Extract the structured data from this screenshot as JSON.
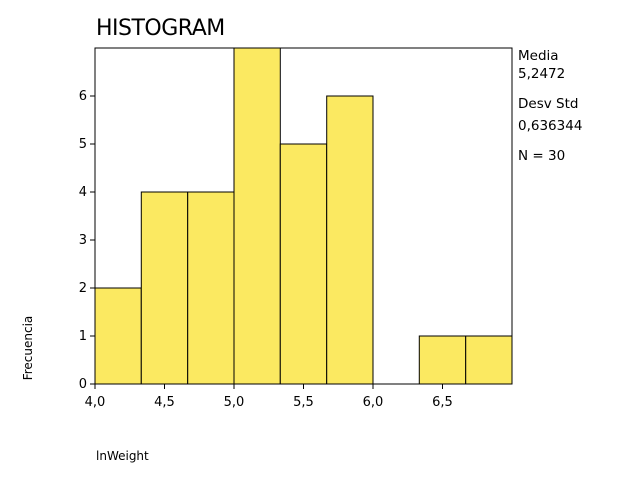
{
  "title": "HISTOGRAM",
  "stats": {
    "mean_label": "Media",
    "mean_value": "5,2472",
    "sd_label": "Desv Std",
    "sd_value": "0,636344",
    "n_text": "N = 30"
  },
  "chart_data": {
    "type": "bar",
    "title": "HISTOGRAM",
    "xlabel": "lnWeight",
    "ylabel": "Frecuencia",
    "bin_width": 0.333,
    "bin_start": 4.0,
    "bins": [
      {
        "start": 4.0,
        "end": 4.333,
        "count": 2
      },
      {
        "start": 4.333,
        "end": 4.667,
        "count": 4
      },
      {
        "start": 4.667,
        "end": 5.0,
        "count": 4
      },
      {
        "start": 5.0,
        "end": 5.333,
        "count": 7
      },
      {
        "start": 5.333,
        "end": 5.667,
        "count": 5
      },
      {
        "start": 5.667,
        "end": 6.0,
        "count": 6
      },
      {
        "start": 6.0,
        "end": 6.333,
        "count": 0
      },
      {
        "start": 6.333,
        "end": 6.667,
        "count": 1
      },
      {
        "start": 6.667,
        "end": 7.0,
        "count": 1
      }
    ],
    "xlim": [
      4.0,
      7.0
    ],
    "ylim": [
      0,
      7
    ],
    "x_ticks": [
      4.0,
      4.5,
      5.0,
      5.5,
      6.0,
      6.5
    ],
    "x_tick_labels": [
      "4,0",
      "4,5",
      "5,0",
      "5,5",
      "6,0",
      "6,5"
    ],
    "y_ticks": [
      0,
      1,
      2,
      3,
      4,
      5,
      6
    ],
    "y_tick_labels": [
      "0",
      "1",
      "2",
      "3",
      "4",
      "5",
      "6"
    ],
    "bar_color": "#FBE961",
    "bar_edge_color": "#000000",
    "grid": false,
    "legend": "none"
  }
}
